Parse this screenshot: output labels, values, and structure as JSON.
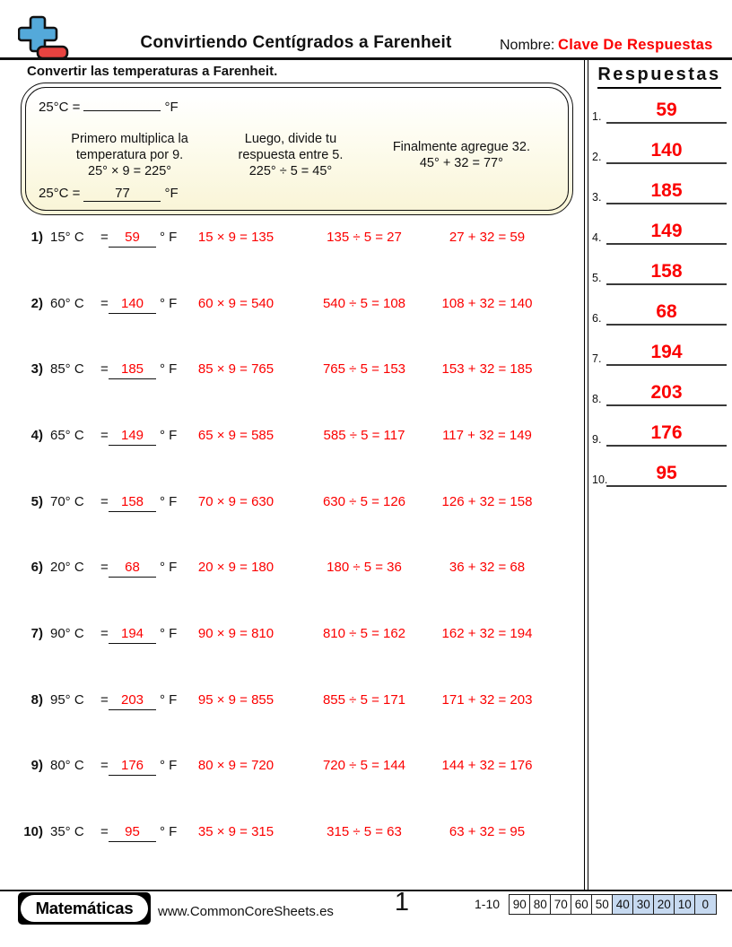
{
  "colors": {
    "accent_red": "#fb0000",
    "score_highlight": "#c6d9f0",
    "icon_blue": "#54a9da",
    "icon_red": "#e84340",
    "box_yellow": "#f9f5d8"
  },
  "header": {
    "title": "Convirtiendo Centígrados a Farenheit",
    "name_label": "Nombre:",
    "name_value": "Clave De Respuestas"
  },
  "instruction": "Convertir las temperaturas a Farenheit.",
  "example": {
    "top": {
      "prefix": "25°C =",
      "blank": "",
      "suffix": "°F"
    },
    "steps": [
      {
        "lines": [
          "Primero multiplica la",
          "temperatura por 9.",
          "25° × 9 = 225°"
        ]
      },
      {
        "lines": [
          "Luego, divide tu",
          "respuesta entre 5.",
          "225° ÷ 5 = 45°"
        ]
      },
      {
        "lines": [
          "Finalmente agregue 32.",
          "45° + 32 = 77°"
        ]
      }
    ],
    "bottom": {
      "prefix": "25°C =",
      "answer": "77",
      "suffix": "°F"
    }
  },
  "problems": [
    {
      "num": "1)",
      "celsius": "15° C",
      "eq": "=",
      "answer": "59",
      "unit": "° F",
      "work": [
        "15 × 9 = 135",
        "135 ÷ 5 = 27",
        "27 + 32 = 59"
      ]
    },
    {
      "num": "2)",
      "celsius": "60° C",
      "eq": "=",
      "answer": "140",
      "unit": "° F",
      "work": [
        "60 × 9 = 540",
        "540 ÷ 5 = 108",
        "108 + 32 = 140"
      ]
    },
    {
      "num": "3)",
      "celsius": "85° C",
      "eq": "=",
      "answer": "185",
      "unit": "° F",
      "work": [
        "85 × 9 = 765",
        "765 ÷ 5 = 153",
        "153 + 32 = 185"
      ]
    },
    {
      "num": "4)",
      "celsius": "65° C",
      "eq": "=",
      "answer": "149",
      "unit": "° F",
      "work": [
        "65 × 9 = 585",
        "585 ÷ 5 = 117",
        "117 + 32 = 149"
      ]
    },
    {
      "num": "5)",
      "celsius": "70° C",
      "eq": "=",
      "answer": "158",
      "unit": "° F",
      "work": [
        "70 × 9 = 630",
        "630 ÷ 5 = 126",
        "126 + 32 = 158"
      ]
    },
    {
      "num": "6)",
      "celsius": "20° C",
      "eq": "=",
      "answer": "68",
      "unit": "° F",
      "work": [
        "20 × 9 = 180",
        "180 ÷ 5 = 36",
        "36 + 32 = 68"
      ]
    },
    {
      "num": "7)",
      "celsius": "90° C",
      "eq": "=",
      "answer": "194",
      "unit": "° F",
      "work": [
        "90 × 9 = 810",
        "810 ÷ 5 = 162",
        "162 + 32 = 194"
      ]
    },
    {
      "num": "8)",
      "celsius": "95° C",
      "eq": "=",
      "answer": "203",
      "unit": "° F",
      "work": [
        "95 × 9 = 855",
        "855 ÷ 5 = 171",
        "171 + 32 = 203"
      ]
    },
    {
      "num": "9)",
      "celsius": "80° C",
      "eq": "=",
      "answer": "176",
      "unit": "° F",
      "work": [
        "80 × 9 = 720",
        "720 ÷ 5 = 144",
        "144 + 32 = 176"
      ]
    },
    {
      "num": "10)",
      "celsius": "35° C",
      "eq": "=",
      "answer": "95",
      "unit": "° F",
      "work": [
        "35 × 9 = 315",
        "315 ÷ 5 = 63",
        "63 + 32 = 95"
      ]
    }
  ],
  "answers_panel": {
    "title": "Respuestas",
    "items": [
      {
        "label": "1.",
        "value": "59"
      },
      {
        "label": "2.",
        "value": "140"
      },
      {
        "label": "3.",
        "value": "185"
      },
      {
        "label": "4.",
        "value": "149"
      },
      {
        "label": "5.",
        "value": "158"
      },
      {
        "label": "6.",
        "value": "68"
      },
      {
        "label": "7.",
        "value": "194"
      },
      {
        "label": "8.",
        "value": "203"
      },
      {
        "label": "9.",
        "value": "176"
      },
      {
        "label": "10.",
        "value": "95"
      }
    ]
  },
  "footer": {
    "brand": "Matemáticas",
    "website": "www.CommonCoreSheets.es",
    "page_number": "1",
    "score_label": "1-10",
    "score_cells": [
      {
        "value": "90",
        "highlight": false
      },
      {
        "value": "80",
        "highlight": false
      },
      {
        "value": "70",
        "highlight": false
      },
      {
        "value": "60",
        "highlight": false
      },
      {
        "value": "50",
        "highlight": false
      },
      {
        "value": "40",
        "highlight": true
      },
      {
        "value": "30",
        "highlight": true
      },
      {
        "value": "20",
        "highlight": true
      },
      {
        "value": "10",
        "highlight": true
      },
      {
        "value": "0",
        "highlight": true
      }
    ]
  }
}
